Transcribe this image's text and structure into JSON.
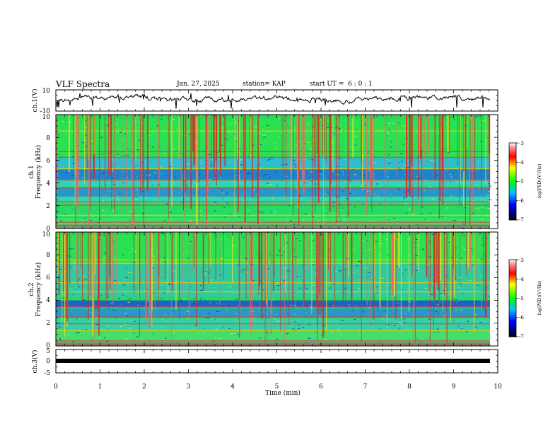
{
  "header": {
    "title": "VLF Spectra",
    "date": "Jan. 27, 2025",
    "station": "station= KAP",
    "start": "start UT =  6 : 0 : 1"
  },
  "chart_data": [
    {
      "type": "line",
      "ylabel": "ch.1(V)",
      "ylim": [
        -10,
        10
      ],
      "yticks": [
        "10",
        "-10"
      ],
      "xlim": [
        0,
        10
      ]
    },
    {
      "type": "heatmap",
      "ylabel_top": "ch.1",
      "ylabel": "Frequency (kHz)",
      "ylim": [
        0,
        10
      ],
      "yticks": [
        "0",
        "2",
        "4",
        "6",
        "8",
        "10"
      ],
      "xlim": [
        0,
        10
      ],
      "colorbar": {
        "label": "log(PSD)(V²/Hz)",
        "ticks": [
          "-3",
          "-4",
          "-5",
          "-6",
          "-7"
        ],
        "range": [
          -7,
          -3
        ]
      }
    },
    {
      "type": "heatmap",
      "ylabel_top": "ch.2",
      "ylabel": "Frequency (kHz)",
      "ylim": [
        0,
        10
      ],
      "yticks": [
        "0",
        "2",
        "4",
        "6",
        "8",
        "10"
      ],
      "xlim": [
        0,
        10
      ],
      "colorbar": {
        "label": "log(PSD)(V²/Hz)",
        "ticks": [
          "-3",
          "-4",
          "-5",
          "-6",
          "-7"
        ],
        "range": [
          -7,
          -3
        ]
      }
    },
    {
      "type": "line",
      "ylabel": "ch.3(V)",
      "ylim": [
        -5,
        5
      ],
      "yticks": [
        "5",
        "0",
        "-5"
      ],
      "xlim": [
        0,
        10
      ],
      "xlabel": "Time (min)",
      "xticks": [
        "0",
        "1",
        "2",
        "3",
        "4",
        "5",
        "6",
        "7",
        "8",
        "9",
        "10"
      ]
    }
  ],
  "colors": {
    "low": "#000080",
    "mid": "#00ff00",
    "high": "#ff0000",
    "line": "#000000"
  }
}
